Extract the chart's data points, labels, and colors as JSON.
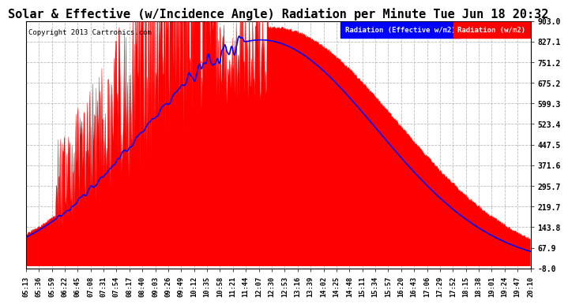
{
  "title": "Solar & Effective (w/Incidence Angle) Radiation per Minute Tue Jun 18 20:32",
  "copyright": "Copyright 2013 Cartronics.com",
  "ylim": [
    -8.0,
    903.0
  ],
  "yticks": [
    -8.0,
    67.9,
    143.8,
    219.7,
    295.7,
    371.6,
    447.5,
    523.4,
    599.3,
    675.2,
    751.2,
    827.1,
    903.0
  ],
  "background_color": "#ffffff",
  "plot_bg_color": "#ffffff",
  "grid_color": "#bbbbbb",
  "red_color": "#ff0000",
  "blue_color": "#0000ff",
  "title_fontsize": 11,
  "legend_labels": [
    "Radiation (Effective w/m2)",
    "Radiation (w/m2)"
  ],
  "legend_colors": [
    "#0000ff",
    "#ff0000"
  ],
  "time_labels": [
    "05:13",
    "05:36",
    "05:59",
    "06:22",
    "06:45",
    "07:08",
    "07:31",
    "07:54",
    "08:17",
    "08:40",
    "09:03",
    "09:26",
    "09:49",
    "10:12",
    "10:35",
    "10:58",
    "11:21",
    "11:44",
    "12:07",
    "12:30",
    "12:53",
    "13:16",
    "13:39",
    "14:02",
    "14:25",
    "14:48",
    "15:11",
    "15:34",
    "15:57",
    "16:20",
    "16:43",
    "17:06",
    "17:29",
    "17:52",
    "18:15",
    "18:38",
    "19:01",
    "19:24",
    "19:47",
    "20:10"
  ]
}
